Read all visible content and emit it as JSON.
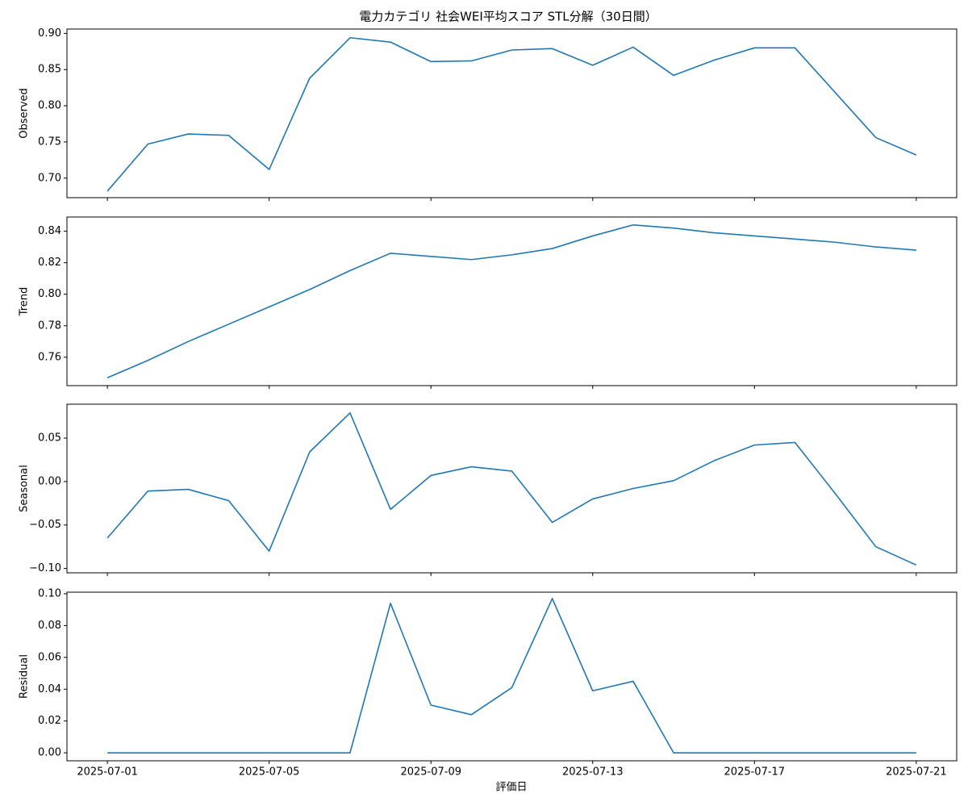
{
  "chart_data": {
    "type": "line",
    "title": "電力カテゴリ 社会WEI平均スコア STL分解（30日間）",
    "xlabel": "評価日",
    "color": "#1f77b4",
    "x": [
      "2025-07-01",
      "2025-07-02",
      "2025-07-03",
      "2025-07-04",
      "2025-07-05",
      "2025-07-06",
      "2025-07-07",
      "2025-07-08",
      "2025-07-09",
      "2025-07-10",
      "2025-07-11",
      "2025-07-12",
      "2025-07-13",
      "2025-07-14",
      "2025-07-15",
      "2025-07-16",
      "2025-07-17",
      "2025-07-18",
      "2025-07-19",
      "2025-07-20",
      "2025-07-21"
    ],
    "xlim": [
      "2025-06-30",
      "2025-07-22"
    ],
    "xticks": [
      "2025-07-01",
      "2025-07-05",
      "2025-07-09",
      "2025-07-13",
      "2025-07-17",
      "2025-07-21"
    ],
    "panels": [
      {
        "ylabel": "Observed",
        "values": [
          0.682,
          0.747,
          0.761,
          0.759,
          0.712,
          0.838,
          0.894,
          0.888,
          0.861,
          0.862,
          0.877,
          0.879,
          0.856,
          0.881,
          0.842,
          0.863,
          0.88,
          0.88,
          0.818,
          0.756,
          0.732
        ],
        "ylim": [
          0.673,
          0.906
        ],
        "yticks": [
          {
            "value": 0.7,
            "label": "0.70"
          },
          {
            "value": 0.75,
            "label": "0.75"
          },
          {
            "value": 0.8,
            "label": "0.80"
          },
          {
            "value": 0.85,
            "label": "0.85"
          },
          {
            "value": 0.9,
            "label": "0.90"
          }
        ]
      },
      {
        "ylabel": "Trend",
        "values": [
          0.747,
          0.758,
          0.77,
          0.781,
          0.792,
          0.803,
          0.815,
          0.826,
          0.824,
          0.822,
          0.825,
          0.829,
          0.837,
          0.844,
          0.842,
          0.839,
          0.837,
          0.835,
          0.833,
          0.83,
          0.828
        ],
        "ylim": [
          0.742,
          0.849
        ],
        "yticks": [
          {
            "value": 0.76,
            "label": "0.76"
          },
          {
            "value": 0.78,
            "label": "0.78"
          },
          {
            "value": 0.8,
            "label": "0.80"
          },
          {
            "value": 0.82,
            "label": "0.82"
          },
          {
            "value": 0.84,
            "label": "0.84"
          }
        ]
      },
      {
        "ylabel": "Seasonal",
        "values": [
          -0.065,
          -0.011,
          -0.009,
          -0.022,
          -0.08,
          0.034,
          0.079,
          -0.032,
          0.007,
          0.017,
          0.012,
          -0.047,
          -0.02,
          -0.008,
          0.001,
          0.024,
          0.042,
          0.045,
          -0.014,
          -0.075,
          -0.096
        ],
        "ylim": [
          -0.105,
          0.089
        ],
        "yticks": [
          {
            "value": -0.1,
            "label": "−0.10"
          },
          {
            "value": -0.05,
            "label": "−0.05"
          },
          {
            "value": 0.0,
            "label": "0.00"
          },
          {
            "value": 0.05,
            "label": "0.05"
          }
        ]
      },
      {
        "ylabel": "Residual",
        "values": [
          0,
          0,
          0,
          0,
          0,
          0,
          0,
          0.094,
          0.03,
          0.024,
          0.041,
          0.097,
          0.039,
          0.045,
          0,
          0,
          0,
          0,
          0,
          0,
          0
        ],
        "ylim": [
          -0.005,
          0.101
        ],
        "yticks": [
          {
            "value": 0.0,
            "label": "0.00"
          },
          {
            "value": 0.02,
            "label": "0.02"
          },
          {
            "value": 0.04,
            "label": "0.04"
          },
          {
            "value": 0.06,
            "label": "0.06"
          },
          {
            "value": 0.08,
            "label": "0.08"
          },
          {
            "value": 0.1,
            "label": "0.10"
          }
        ]
      }
    ]
  }
}
